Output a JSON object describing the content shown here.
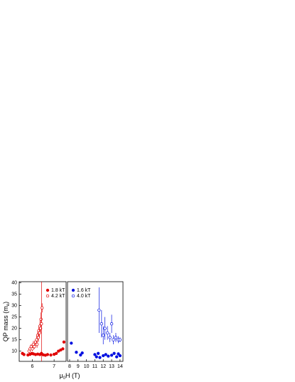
{
  "chart_data": [
    {
      "type": "scatter",
      "x_label": "μ",
      "x_label_sub": "0",
      "x_label_end": "H (T)",
      "y_label": "QP mass (m",
      "y_label_sub": "e",
      "y_label_end": ")",
      "xlim": [
        5.4,
        7.55
      ],
      "xticks": [
        6,
        7
      ],
      "ylim": [
        5.5,
        40.5
      ],
      "yticks": [
        10,
        15,
        20,
        25,
        30,
        35,
        40
      ],
      "legend": "top-right",
      "series": [
        {
          "name": "1.8 kT",
          "color": "#e00000",
          "filled": true,
          "x": [
            5.55,
            5.62,
            5.8,
            5.9,
            5.98,
            6.05,
            6.15,
            6.25,
            6.35,
            6.42,
            6.5,
            6.6,
            6.7,
            6.85,
            7.0,
            7.1,
            7.2,
            7.3,
            7.4,
            7.45
          ],
          "values": [
            9,
            8.5,
            8.3,
            8.6,
            9,
            8.8,
            8.5,
            8.7,
            8.5,
            9,
            8.4,
            8.2,
            8.5,
            8.3,
            8.6,
            9,
            10,
            10.5,
            11,
            14
          ]
        },
        {
          "name": "4.2 kT",
          "color": "#e00000",
          "filled": false,
          "x": [
            5.85,
            5.9,
            5.95,
            6.0,
            6.05,
            6.1,
            6.15,
            6.2,
            6.22,
            6.25,
            6.28,
            6.3,
            6.33,
            6.35,
            6.38,
            6.4,
            6.42,
            6.45
          ],
          "values": [
            10,
            11,
            12,
            11,
            13,
            12,
            14,
            15,
            13,
            17,
            16,
            19,
            18,
            21,
            20,
            24,
            22,
            29
          ],
          "errors": [
            1,
            1,
            1,
            1,
            1.5,
            1,
            1.5,
            2,
            1.5,
            2,
            2,
            2,
            2,
            2.5,
            2,
            3,
            20,
            2
          ]
        }
      ]
    },
    {
      "type": "scatter",
      "xlim": [
        7.75,
        14.35
      ],
      "xticks": [
        8,
        9,
        10,
        11,
        12,
        13,
        14
      ],
      "ylim": [
        5.5,
        40.5
      ],
      "legend": "top-left",
      "series": [
        {
          "name": "1.6 kT",
          "color": "#0010e0",
          "filled": true,
          "x": [
            8.2,
            8.8,
            9.3,
            9.5,
            11.0,
            11.2,
            11.4,
            11.6,
            12.0,
            12.3,
            12.6,
            13.0,
            13.3,
            13.6,
            13.8,
            14.0
          ],
          "values": [
            13.5,
            9.5,
            8.3,
            9.2,
            8.5,
            7.5,
            9,
            7.2,
            8,
            8.5,
            7.8,
            8.2,
            9,
            7.5,
            8.8,
            8
          ]
        },
        {
          "name": "4.0 kT",
          "color": "#0010e0",
          "filled": false,
          "x": [
            11.5,
            11.8,
            12.0,
            12.2,
            12.5,
            12.8,
            13.0,
            13.2,
            13.5,
            13.8,
            14.0
          ],
          "values": [
            28,
            22,
            17,
            20,
            18,
            16,
            22,
            15,
            16,
            15,
            15
          ],
          "errors": [
            10,
            6,
            4,
            5,
            3,
            2,
            4,
            2,
            2,
            1.5,
            1
          ]
        }
      ]
    }
  ]
}
